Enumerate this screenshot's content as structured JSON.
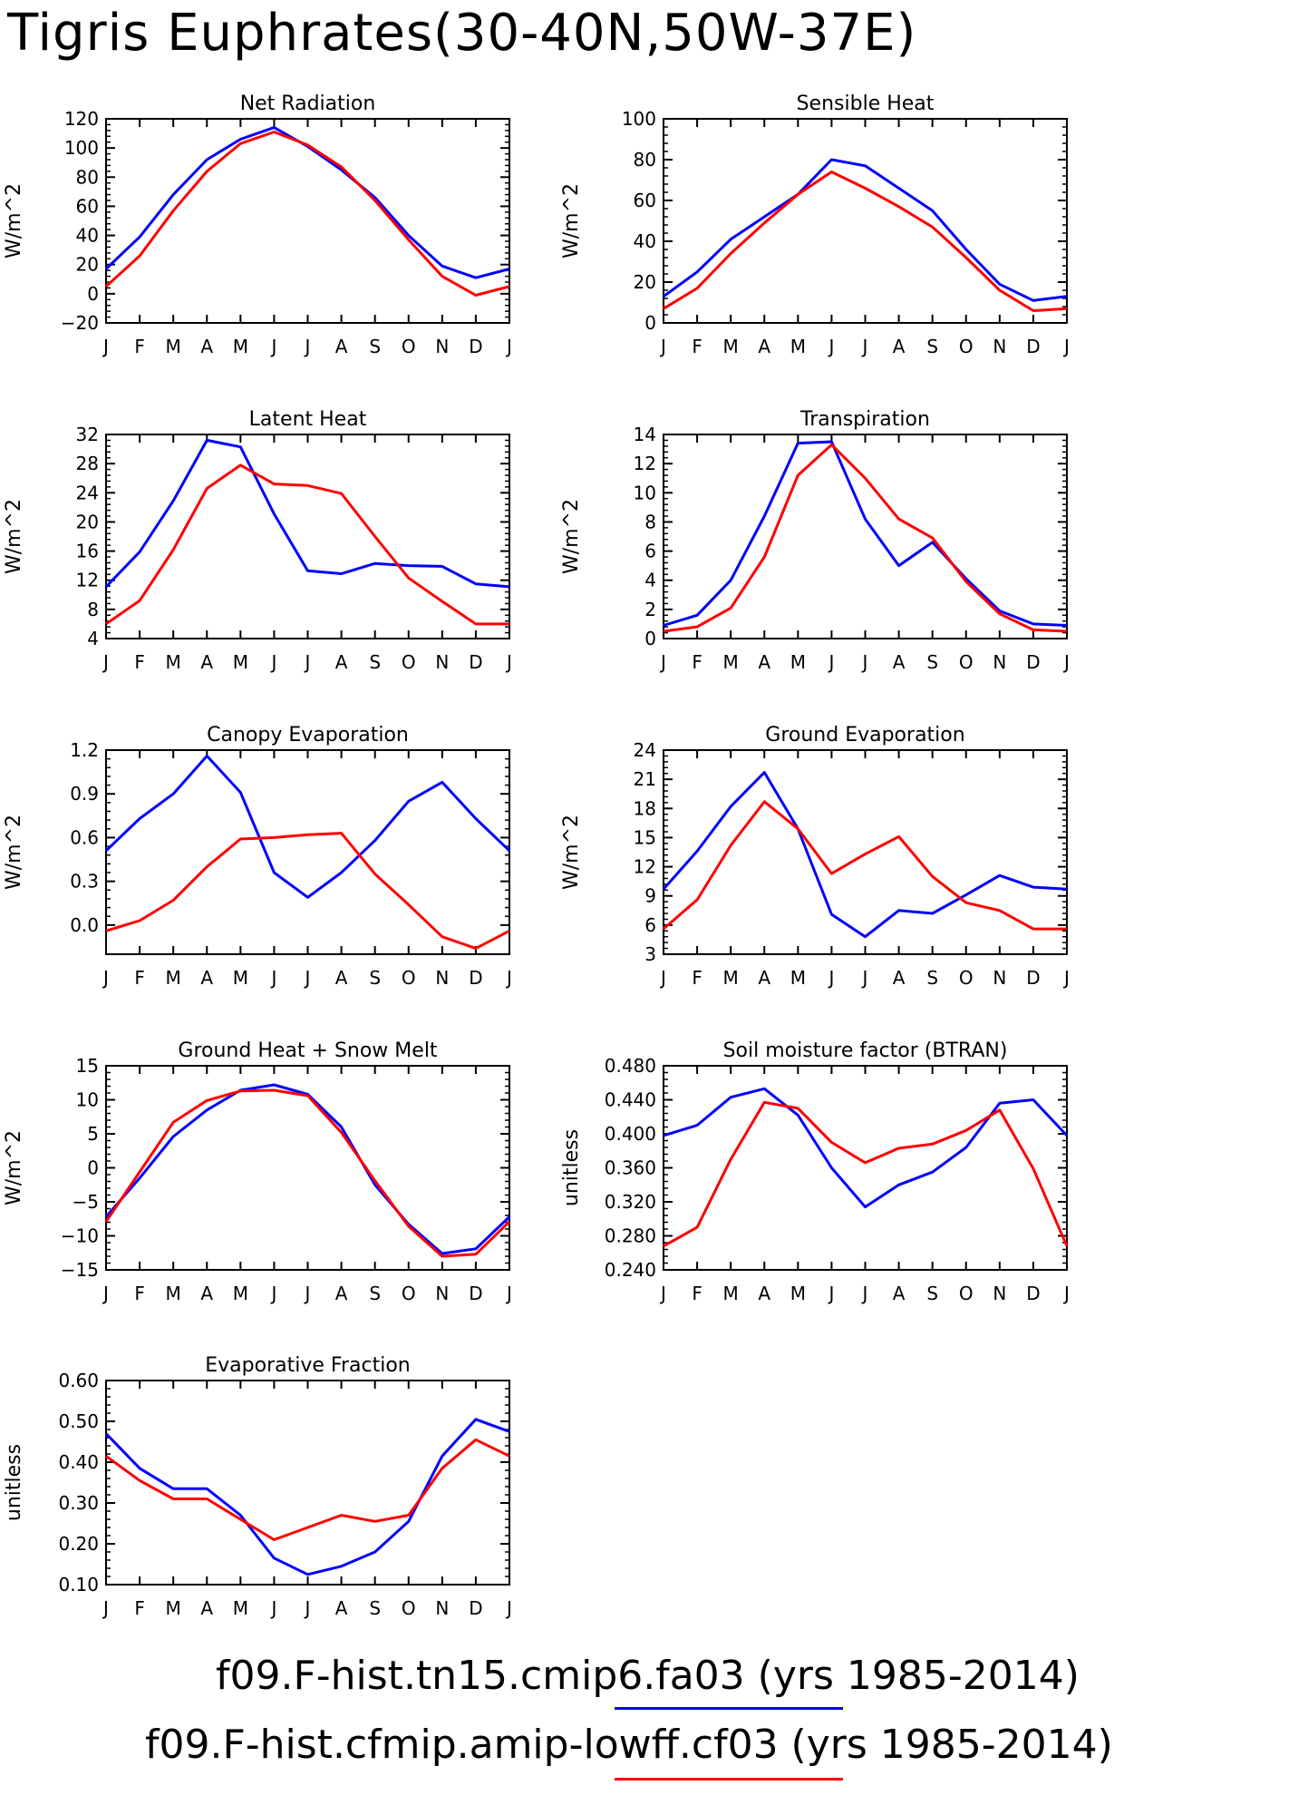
{
  "title": "Tigris Euphrates(30-40N,50W-37E)",
  "colors": {
    "series1": "#0000ff",
    "series2": "#ff0000",
    "axis": "#000000"
  },
  "legend": [
    {
      "label": "f09.F-hist.tn15.cmip6.fa03 (yrs 1985-2014)",
      "color": "#0000ff"
    },
    {
      "label": "f09.F-hist.cfmip.amip-lowff.cf03 (yrs 1985-2014)",
      "color": "#ff0000"
    }
  ],
  "chart_data": [
    {
      "type": "line",
      "title": "Net Radiation",
      "ylabel": "W/m^2",
      "categories": [
        "J",
        "F",
        "M",
        "A",
        "M",
        "J",
        "J",
        "A",
        "S",
        "O",
        "N",
        "D",
        "J"
      ],
      "ylim": [
        -20,
        120
      ],
      "yticks": [
        "-20",
        "0",
        "20",
        "40",
        "60",
        "80",
        "100",
        "120"
      ],
      "series": [
        {
          "color": "#0000ff",
          "values": [
            17,
            39,
            68,
            92,
            106,
            114,
            101,
            85,
            66,
            40,
            19,
            11,
            17
          ]
        },
        {
          "color": "#ff0000",
          "values": [
            5,
            26,
            57,
            84,
            103,
            111,
            102,
            87,
            64,
            37,
            12,
            -1,
            5
          ]
        }
      ]
    },
    {
      "type": "line",
      "title": "Sensible Heat",
      "ylabel": "W/m^2",
      "categories": [
        "J",
        "F",
        "M",
        "A",
        "M",
        "J",
        "J",
        "A",
        "S",
        "O",
        "N",
        "D",
        "J"
      ],
      "ylim": [
        0,
        100
      ],
      "yticks": [
        "0",
        "20",
        "40",
        "60",
        "80",
        "100"
      ],
      "series": [
        {
          "color": "#0000ff",
          "values": [
            13,
            25,
            41,
            52,
            63,
            80,
            77,
            66,
            55,
            36,
            19,
            11,
            13
          ]
        },
        {
          "color": "#ff0000",
          "values": [
            7,
            17,
            34,
            49,
            63,
            74,
            66,
            57,
            47,
            32,
            16,
            6,
            7
          ]
        }
      ]
    },
    {
      "type": "line",
      "title": "Latent Heat",
      "ylabel": "W/m^2",
      "categories": [
        "J",
        "F",
        "M",
        "A",
        "M",
        "J",
        "J",
        "A",
        "S",
        "O",
        "N",
        "D",
        "J"
      ],
      "ylim": [
        4,
        32
      ],
      "yticks": [
        "4",
        "8",
        "12",
        "16",
        "20",
        "24",
        "28",
        "32"
      ],
      "series": [
        {
          "color": "#0000ff",
          "values": [
            11.1,
            15.9,
            22.9,
            31.2,
            30.3,
            21.1,
            13.3,
            12.9,
            14.3,
            14.0,
            13.9,
            11.5,
            11.1
          ]
        },
        {
          "color": "#ff0000",
          "values": [
            6.0,
            9.2,
            16.2,
            24.6,
            27.8,
            25.2,
            25.0,
            23.9,
            18.0,
            12.3,
            9.1,
            6.0,
            6.0
          ]
        }
      ]
    },
    {
      "type": "line",
      "title": "Transpiration",
      "ylabel": "W/m^2",
      "categories": [
        "J",
        "F",
        "M",
        "A",
        "M",
        "J",
        "J",
        "A",
        "S",
        "O",
        "N",
        "D",
        "J"
      ],
      "ylim": [
        0,
        14
      ],
      "yticks": [
        "0",
        "2",
        "4",
        "6",
        "8",
        "10",
        "12",
        "14"
      ],
      "series": [
        {
          "color": "#0000ff",
          "values": [
            0.9,
            1.6,
            4.0,
            8.4,
            13.4,
            13.5,
            8.2,
            5.0,
            6.6,
            4.1,
            1.9,
            1.0,
            0.9
          ]
        },
        {
          "color": "#ff0000",
          "values": [
            0.5,
            0.8,
            2.1,
            5.6,
            11.2,
            13.3,
            11.0,
            8.2,
            6.9,
            3.9,
            1.7,
            0.6,
            0.5
          ]
        }
      ]
    },
    {
      "type": "line",
      "title": "Canopy Evaporation",
      "ylabel": "W/m^2",
      "categories": [
        "J",
        "F",
        "M",
        "A",
        "M",
        "J",
        "J",
        "A",
        "S",
        "O",
        "N",
        "D",
        "J"
      ],
      "ylim": [
        -0.2,
        1.2
      ],
      "yticks": [
        "0.0",
        "0.3",
        "0.6",
        "0.9",
        "1.2"
      ],
      "series": [
        {
          "color": "#0000ff",
          "values": [
            0.51,
            0.73,
            0.9,
            1.16,
            0.91,
            0.36,
            0.19,
            0.36,
            0.58,
            0.85,
            0.98,
            0.73,
            0.51
          ]
        },
        {
          "color": "#ff0000",
          "values": [
            -0.04,
            0.03,
            0.17,
            0.4,
            0.59,
            0.6,
            0.62,
            0.63,
            0.35,
            0.14,
            -0.08,
            -0.16,
            -0.04
          ]
        }
      ]
    },
    {
      "type": "line",
      "title": "Ground Evaporation",
      "ylabel": "W/m^2",
      "categories": [
        "J",
        "F",
        "M",
        "A",
        "M",
        "J",
        "J",
        "A",
        "S",
        "O",
        "N",
        "D",
        "J"
      ],
      "ylim": [
        3,
        24
      ],
      "yticks": [
        "3",
        "6",
        "9",
        "12",
        "15",
        "18",
        "21",
        "24"
      ],
      "series": [
        {
          "color": "#0000ff",
          "values": [
            9.7,
            13.6,
            18.2,
            21.7,
            15.9,
            7.1,
            4.8,
            7.5,
            7.2,
            9.1,
            11.1,
            9.9,
            9.7
          ]
        },
        {
          "color": "#ff0000",
          "values": [
            5.6,
            8.6,
            14.2,
            18.7,
            15.9,
            11.3,
            13.3,
            15.1,
            11.0,
            8.3,
            7.5,
            5.6,
            5.6
          ]
        }
      ]
    },
    {
      "type": "line",
      "title": "Ground Heat + Snow Melt",
      "ylabel": "W/m^2",
      "categories": [
        "J",
        "F",
        "M",
        "A",
        "M",
        "J",
        "J",
        "A",
        "S",
        "O",
        "N",
        "D",
        "J"
      ],
      "ylim": [
        -15,
        15
      ],
      "yticks": [
        "-15",
        "-10",
        "-5",
        "0",
        "5",
        "10",
        "15"
      ],
      "series": [
        {
          "color": "#0000ff",
          "values": [
            -7.2,
            -1.5,
            4.6,
            8.5,
            11.4,
            12.2,
            10.8,
            6.0,
            -2.5,
            -8.3,
            -12.6,
            -11.9,
            -7.2
          ]
        },
        {
          "color": "#ff0000",
          "values": [
            -7.9,
            -0.6,
            6.7,
            9.9,
            11.3,
            11.4,
            10.6,
            5.2,
            -1.9,
            -8.6,
            -13.0,
            -12.7,
            -7.9
          ]
        }
      ]
    },
    {
      "type": "line",
      "title": "Soil moisture factor (BTRAN)",
      "ylabel": "unitless",
      "categories": [
        "J",
        "F",
        "M",
        "A",
        "M",
        "J",
        "J",
        "A",
        "S",
        "O",
        "N",
        "D",
        "J"
      ],
      "ylim": [
        0.24,
        0.48
      ],
      "yticks": [
        "0.240",
        "0.280",
        "0.320",
        "0.360",
        "0.400",
        "0.440",
        "0.480"
      ],
      "series": [
        {
          "color": "#0000ff",
          "values": [
            0.398,
            0.41,
            0.443,
            0.453,
            0.422,
            0.36,
            0.314,
            0.34,
            0.355,
            0.384,
            0.436,
            0.44,
            0.398
          ]
        },
        {
          "color": "#ff0000",
          "values": [
            0.268,
            0.29,
            0.37,
            0.437,
            0.43,
            0.39,
            0.366,
            0.383,
            0.388,
            0.404,
            0.428,
            0.359,
            0.268
          ]
        }
      ]
    },
    {
      "type": "line",
      "title": "Evaporative Fraction",
      "ylabel": "unitless",
      "categories": [
        "J",
        "F",
        "M",
        "A",
        "M",
        "J",
        "J",
        "A",
        "S",
        "O",
        "N",
        "D",
        "J"
      ],
      "ylim": [
        0.1,
        0.6
      ],
      "yticks": [
        "0.10",
        "0.20",
        "0.30",
        "0.40",
        "0.50",
        "0.60"
      ],
      "series": [
        {
          "color": "#0000ff",
          "values": [
            0.47,
            0.385,
            0.335,
            0.335,
            0.27,
            0.165,
            0.125,
            0.145,
            0.18,
            0.255,
            0.415,
            0.505,
            0.475
          ]
        },
        {
          "color": "#ff0000",
          "values": [
            0.415,
            0.355,
            0.31,
            0.31,
            0.26,
            0.21,
            0.24,
            0.27,
            0.255,
            0.27,
            0.385,
            0.455,
            0.415
          ]
        }
      ]
    }
  ]
}
